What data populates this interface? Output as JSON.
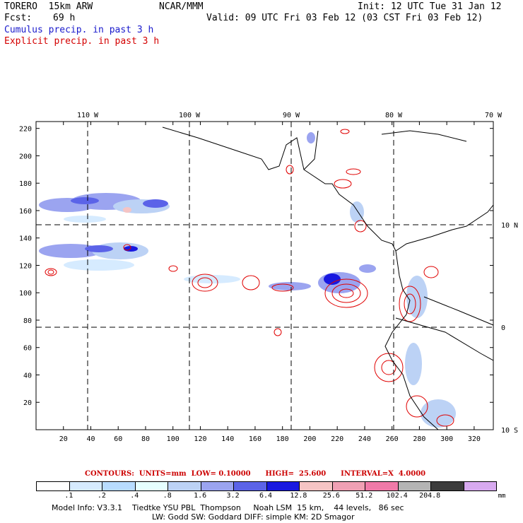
{
  "header": {
    "model_title": "TORERO  15km ARW",
    "center": "NCAR/MMM",
    "init": "Init: 12 UTC Tue 31 Jan 12",
    "fcst_label": "Fcst:",
    "fcst_value": "69 h",
    "valid": "Valid: 09 UTC Fri 03 Feb 12 (03 CST Fri 03 Feb 12)",
    "cumulus": "Cumulus precip. in past 3 h",
    "explicit": "Explicit precip. in past 3 h"
  },
  "top_axis": [
    "110 W",
    "100 W",
    "90 W",
    "80 W",
    "70 W"
  ],
  "right_axis": [
    "10 N",
    "0",
    "10 S"
  ],
  "left_axis": [
    "220",
    "200",
    "180",
    "160",
    "140",
    "120",
    "100",
    "80",
    "60",
    "40",
    "20"
  ],
  "bottom_axis": [
    "20",
    "40",
    "60",
    "80",
    "100",
    "120",
    "140",
    "160",
    "180",
    "200",
    "220",
    "240",
    "260",
    "280",
    "300",
    "320"
  ],
  "contours": "CONTOURS:  UNITS=mm  LOW= 0.10000      HIGH=  25.600      INTERVAL=X  4.0000",
  "legend": {
    "colors": [
      "#ffffff",
      "#d6ebff",
      "#b8dcff",
      "#e6ffff",
      "#bcd2f5",
      "#9ba4f0",
      "#5b63e8",
      "#1818e0",
      "#f5c4c4",
      "#f0a0b4",
      "#f07aa8",
      "#b4b4b4",
      "#3c3c3c",
      "#d8aaf0"
    ],
    "labels": [
      ".1",
      ".2",
      ".4",
      ".8",
      "1.6",
      "3.2",
      "6.4",
      "12.8",
      "25.6",
      "51.2",
      "102.4",
      "204.8"
    ],
    "unit": "mm"
  },
  "footer": {
    "line1": "Model Info: V3.3.1    Tiedtke YSU PBL  Thompson     Noah LSM  15 km,    44 levels,   86 sec",
    "line2": "LW: Godd SW: Goddard DIFF: simple KM: 2D Smagor"
  }
}
